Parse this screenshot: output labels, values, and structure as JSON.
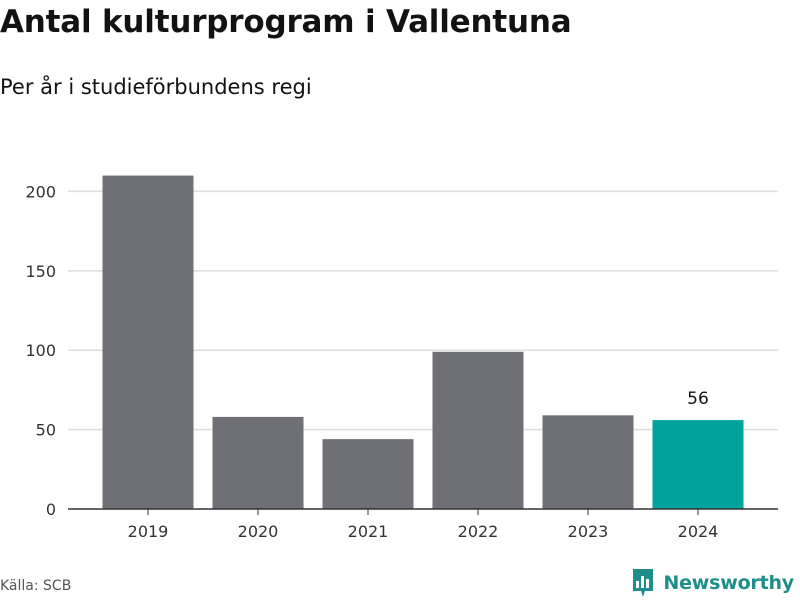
{
  "header": {
    "title": "Antal kulturprogram i Vallentuna",
    "subtitle": "Per år i studieförbundens regi"
  },
  "footer": {
    "source": "Källa: SCB",
    "brand": "Newsworthy"
  },
  "icons": {
    "brand_logo": "bar-chart-icon"
  },
  "colors": {
    "bar": "#6f6f76",
    "highlight": "#00a39b",
    "grid": "#dedede",
    "axis": "#333333",
    "brand": "#1f8e8b"
  },
  "chart_data": {
    "type": "bar",
    "title": "Antal kulturprogram i Vallentuna",
    "subtitle": "Per år i studieförbundens regi",
    "xlabel": "",
    "ylabel": "",
    "categories": [
      "2019",
      "2020",
      "2021",
      "2022",
      "2023",
      "2024"
    ],
    "values": [
      210,
      58,
      44,
      99,
      59,
      56
    ],
    "highlight_index": 5,
    "data_labels": [
      {
        "index": 5,
        "text": "56"
      }
    ],
    "ylim": [
      0,
      220
    ],
    "yticks": [
      0,
      50,
      100,
      150,
      200
    ],
    "grid": true,
    "legend": "none"
  }
}
